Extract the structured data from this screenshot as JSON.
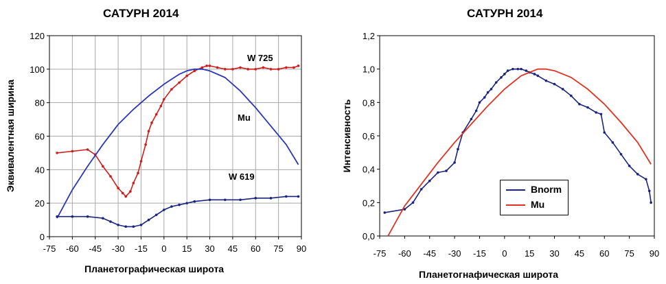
{
  "chart_data": [
    {
      "type": "line",
      "title": "САТУРН  2014",
      "xlabel": "Планетографическая широта",
      "ylabel": "Эквивалентная ширина",
      "xlim": [
        -75,
        90
      ],
      "ylim": [
        0,
        120
      ],
      "xticks": [
        -75,
        -60,
        -45,
        -30,
        -15,
        0,
        15,
        30,
        45,
        60,
        75,
        90
      ],
      "yticks": [
        0,
        20,
        40,
        60,
        80,
        100,
        120
      ],
      "grid": true,
      "legend": "none",
      "series": [
        {
          "name": "W 725",
          "color": "#d11a1a",
          "markers": true,
          "x": [
            -70,
            -60,
            -50,
            -45,
            -40,
            -35,
            -30,
            -27,
            -25,
            -22,
            -20,
            -17,
            -15,
            -12,
            -10,
            -8,
            -5,
            -2,
            0,
            5,
            10,
            15,
            20,
            25,
            28,
            30,
            35,
            40,
            45,
            50,
            55,
            60,
            65,
            70,
            75,
            80,
            85,
            88
          ],
          "y": [
            50,
            51,
            52,
            49,
            42,
            36,
            29,
            26,
            24,
            27,
            32,
            38,
            45,
            55,
            63,
            68,
            73,
            78,
            82,
            88,
            92,
            96,
            99,
            101,
            102,
            102,
            101,
            100,
            100,
            101,
            100,
            100,
            101,
            100,
            100,
            101,
            101,
            102
          ]
        },
        {
          "name": "Mu",
          "color": "#2a35b8",
          "markers": false,
          "x": [
            -70,
            -60,
            -50,
            -40,
            -30,
            -20,
            -10,
            0,
            10,
            15,
            20,
            25,
            30,
            40,
            50,
            60,
            70,
            80,
            88
          ],
          "y": [
            11,
            28,
            42,
            55,
            67,
            76,
            84,
            91,
            97,
            99,
            100,
            100,
            99,
            95,
            87,
            77,
            66,
            55,
            43
          ]
        },
        {
          "name": "W 619",
          "color": "#1a237e",
          "markers": true,
          "x": [
            -70,
            -60,
            -50,
            -40,
            -35,
            -30,
            -25,
            -20,
            -15,
            -10,
            -5,
            0,
            5,
            10,
            15,
            20,
            30,
            40,
            50,
            60,
            70,
            80,
            88
          ],
          "y": [
            12,
            12,
            12,
            11,
            9,
            7,
            6,
            6,
            7,
            10,
            13,
            16,
            18,
            19,
            20,
            21,
            22,
            22,
            22,
            23,
            23,
            24,
            24
          ]
        }
      ]
    },
    {
      "type": "line",
      "title": "САТУРН  2014",
      "xlabel": "Планетогнафическая широта",
      "ylabel": "Интенсивность",
      "xlim": [
        -75,
        90
      ],
      "ylim": [
        0,
        1.2
      ],
      "xticks": [
        -75,
        -60,
        -45,
        -30,
        -15,
        0,
        15,
        30,
        45,
        60,
        75,
        90
      ],
      "yticks": [
        "0,0",
        "0,2",
        "0,4",
        "0,6",
        "0,8",
        "1,0",
        "1,2"
      ],
      "grid": false,
      "legend": "inside-lower-center",
      "series": [
        {
          "name": "Bnorm",
          "color": "#1a237e",
          "markers": true,
          "x": [
            -72,
            -60,
            -55,
            -50,
            -45,
            -40,
            -35,
            -30,
            -28,
            -25,
            -20,
            -17,
            -15,
            -12,
            -10,
            -8,
            -5,
            -2,
            0,
            2,
            5,
            8,
            10,
            13,
            15,
            18,
            20,
            25,
            30,
            35,
            40,
            45,
            50,
            55,
            58,
            60,
            65,
            70,
            75,
            80,
            85,
            87,
            88
          ],
          "y": [
            0.14,
            0.16,
            0.2,
            0.28,
            0.33,
            0.38,
            0.39,
            0.44,
            0.52,
            0.62,
            0.7,
            0.75,
            0.8,
            0.83,
            0.86,
            0.88,
            0.92,
            0.95,
            0.97,
            0.99,
            1.0,
            1.0,
            1.0,
            0.99,
            0.98,
            0.97,
            0.96,
            0.93,
            0.91,
            0.88,
            0.84,
            0.79,
            0.77,
            0.74,
            0.73,
            0.62,
            0.56,
            0.49,
            0.42,
            0.37,
            0.34,
            0.27,
            0.2
          ]
        },
        {
          "name": "Mu",
          "color": "#e03020",
          "markers": false,
          "x": [
            -70,
            -60,
            -50,
            -40,
            -30,
            -20,
            -10,
            0,
            10,
            15,
            20,
            25,
            30,
            40,
            50,
            60,
            70,
            80,
            88
          ],
          "y": [
            0.0,
            0.18,
            0.31,
            0.44,
            0.56,
            0.67,
            0.78,
            0.88,
            0.96,
            0.98,
            1.0,
            1.0,
            0.99,
            0.95,
            0.88,
            0.79,
            0.68,
            0.56,
            0.43
          ]
        }
      ]
    }
  ]
}
